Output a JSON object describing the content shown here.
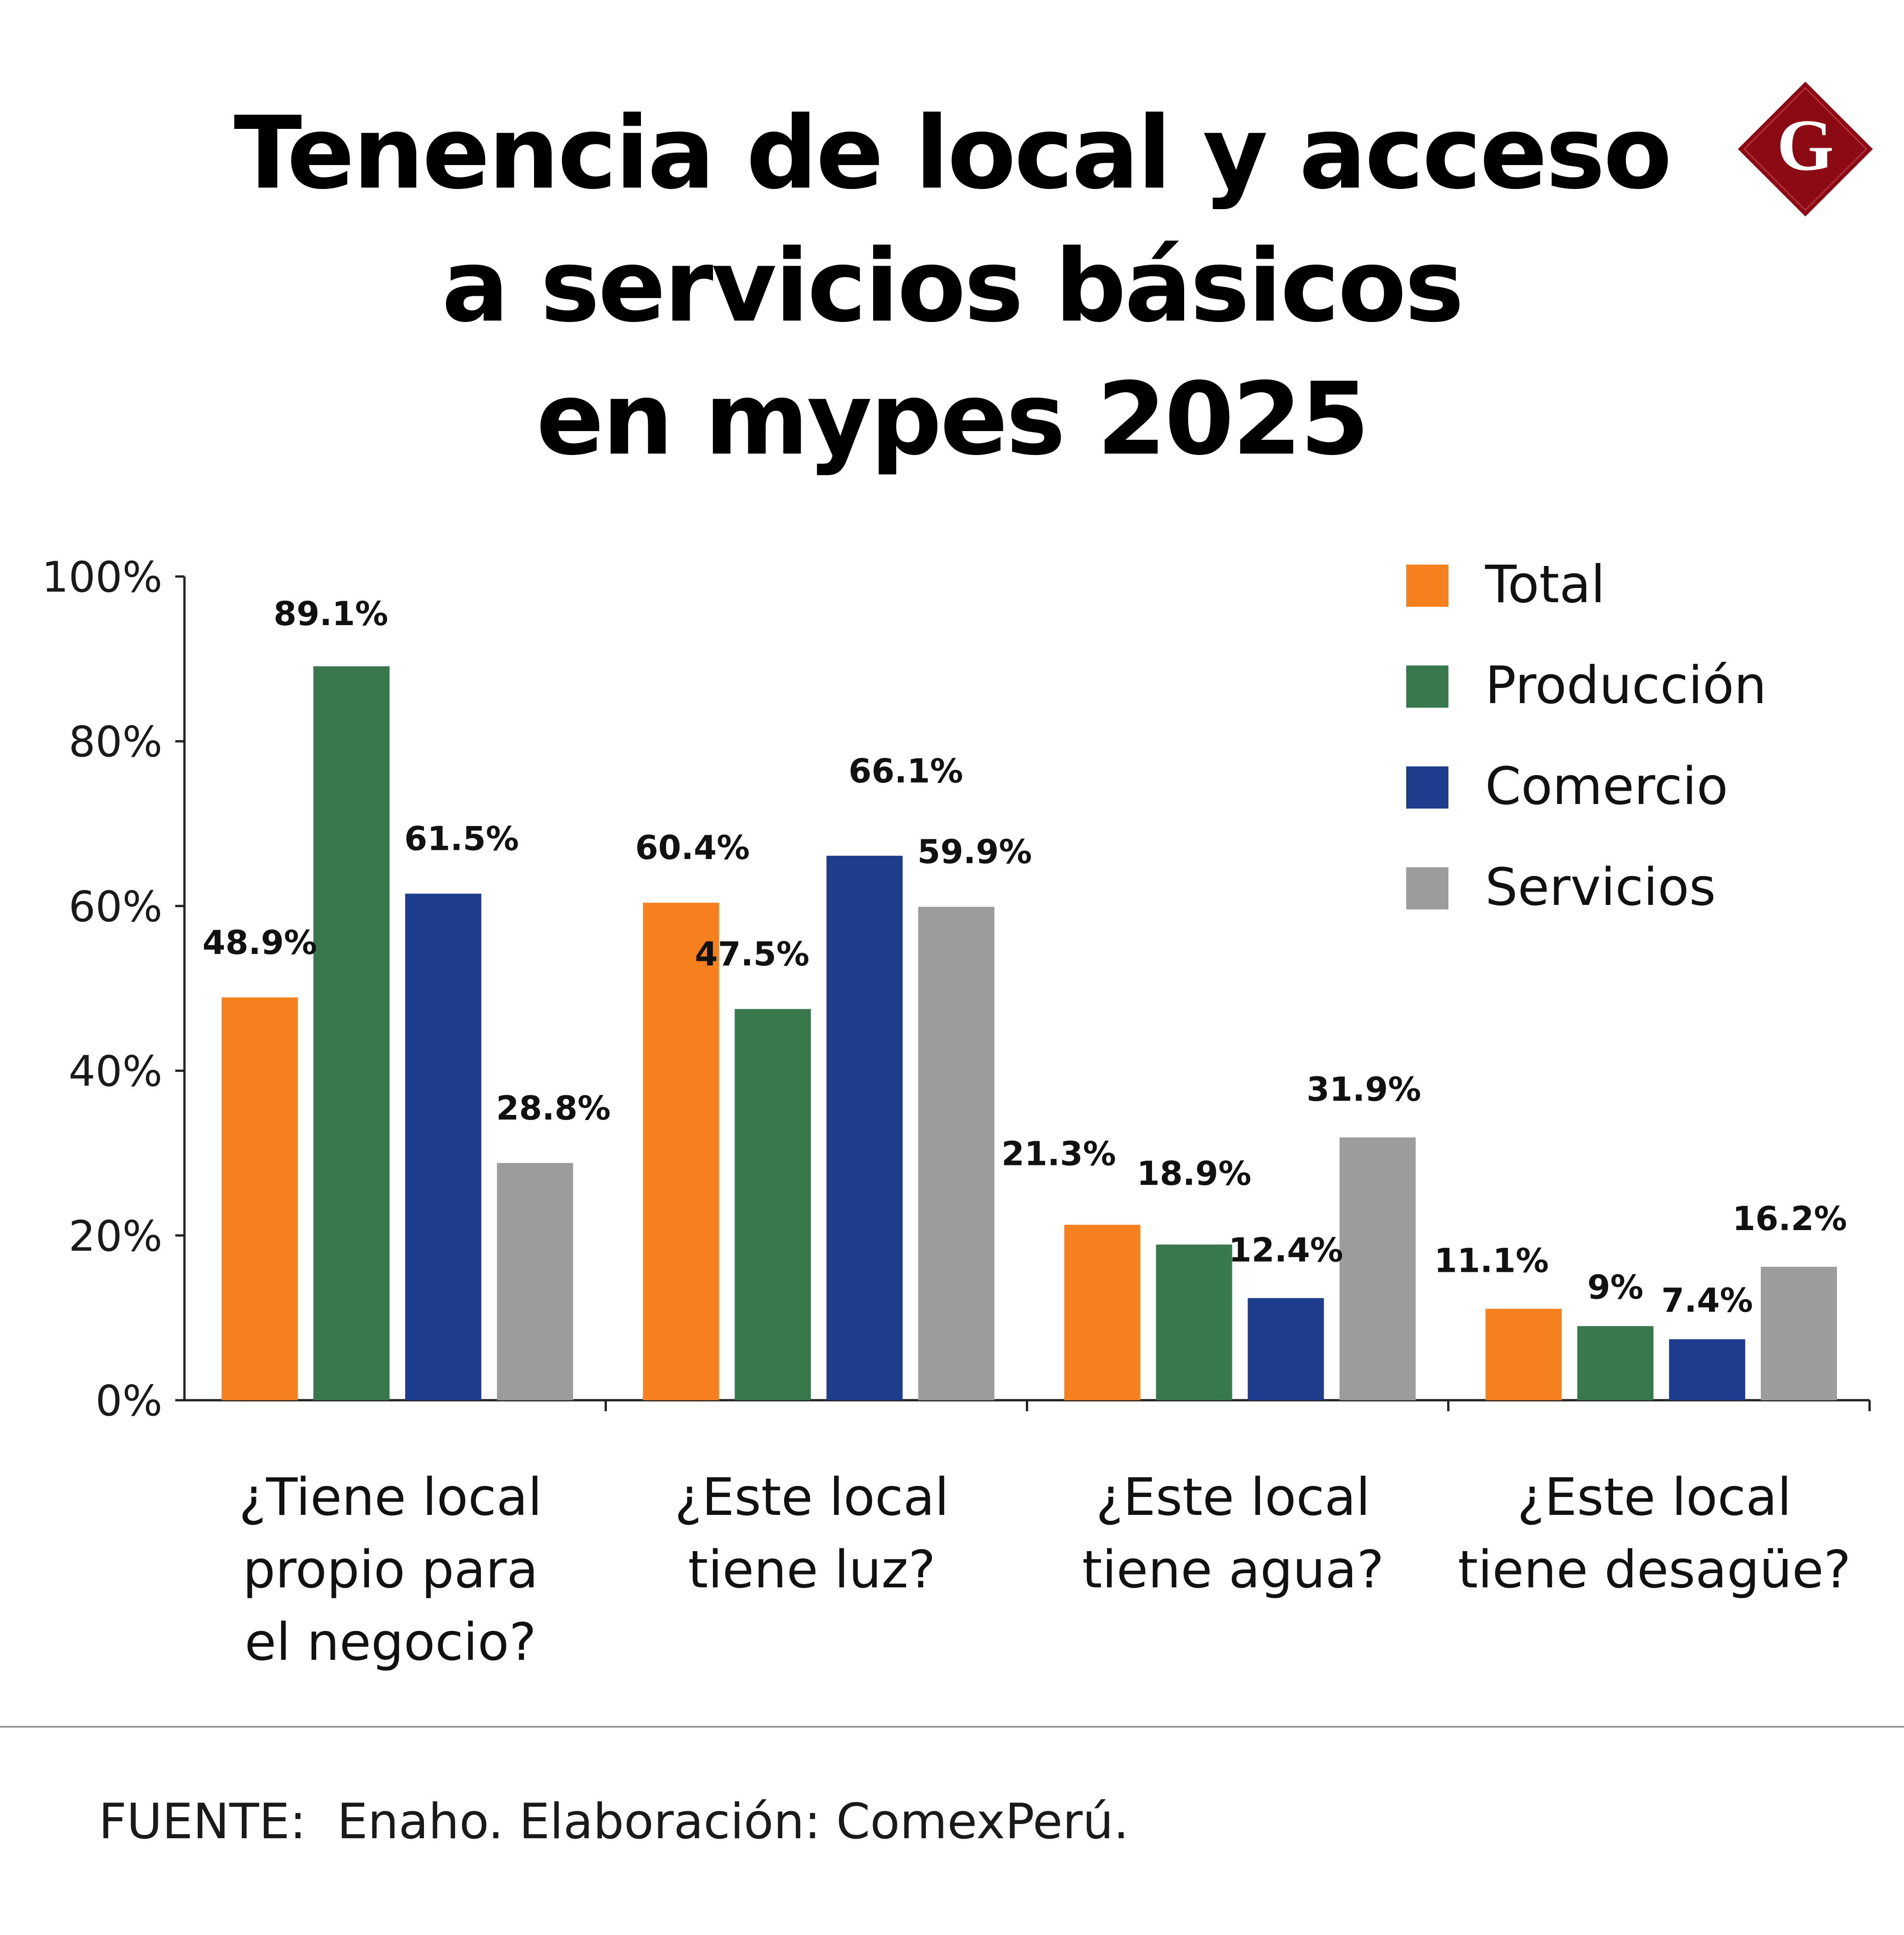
{
  "title_lines": [
    "Tenencia de local y acceso",
    "a servicios básicos",
    "en mypes 2025"
  ],
  "logo": {
    "icon": "diamond-g-logo",
    "letter": "G",
    "color": "#8b0a14"
  },
  "source": "FUENTE:  Enaho. Elaboración: ComexPerú.",
  "chart_data": {
    "type": "bar",
    "title": "Tenencia de local y acceso a servicios básicos en mypes 2025",
    "categories": [
      [
        "¿Tiene local",
        "propio para",
        "el negocio?"
      ],
      [
        "¿Este local",
        "tiene luz?"
      ],
      [
        "¿Este local",
        "tiene agua?"
      ],
      [
        "¿Este local",
        "tiene desagüe?"
      ]
    ],
    "series": [
      {
        "name": "Total",
        "color": "#f7801e",
        "values": [
          48.9,
          60.4,
          21.3,
          11.1
        ],
        "labels": [
          "48.9%",
          "60.4%",
          "21.3%",
          "11.1%"
        ]
      },
      {
        "name": "Producción",
        "color": "#39774c",
        "values": [
          89.1,
          47.5,
          18.9,
          9
        ],
        "labels": [
          "89.1%",
          "47.5%",
          "18.9%",
          "9%"
        ]
      },
      {
        "name": "Comercio",
        "color": "#1e3d8c",
        "values": [
          61.5,
          66.1,
          12.4,
          7.4
        ],
        "labels": [
          "61.5%",
          "66.1%",
          "12.4%",
          "7.4%"
        ]
      },
      {
        "name": "Servicios",
        "color": "#9c9c9c",
        "values": [
          28.8,
          59.9,
          31.9,
          16.2
        ],
        "labels": [
          "28.8%",
          "59.9%",
          "31.9%",
          "16.2%"
        ]
      }
    ],
    "ylim": [
      0,
      100
    ],
    "yticks": [
      0,
      20,
      40,
      60,
      80,
      100
    ],
    "ytick_labels": [
      "0%",
      "20%",
      "40%",
      "60%",
      "80%",
      "100%"
    ],
    "xlabel": "",
    "ylabel": "",
    "legend_position": "top-right",
    "grid": false
  }
}
